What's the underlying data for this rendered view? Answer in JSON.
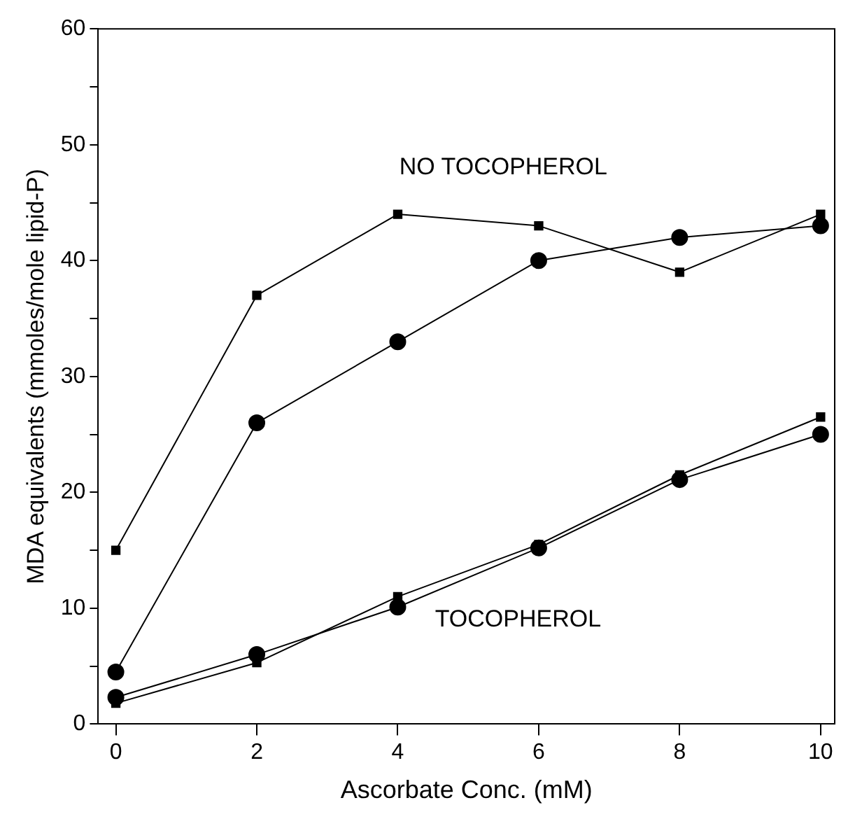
{
  "chart_data": {
    "type": "line",
    "xlabel": "Ascorbate Conc. (mM)",
    "ylabel": "MDA equivalents (mmoles/mole lipid-P)",
    "x": [
      0,
      2,
      4,
      6,
      8,
      10
    ],
    "xlim": [
      -0.25,
      10.2
    ],
    "xticks": [
      0,
      2,
      4,
      6,
      8,
      10
    ],
    "ylim": [
      0,
      60
    ],
    "yticks": [
      0,
      {
        "value": 5,
        "label": null
      },
      10,
      {
        "value": 15,
        "label": null
      },
      20,
      {
        "value": 25,
        "label": null
      },
      30,
      {
        "value": 35,
        "label": null
      },
      40,
      {
        "value": 45,
        "label": null
      },
      50,
      {
        "value": 55,
        "label": null
      },
      60
    ],
    "grid": false,
    "legend": false,
    "line_style": "solid",
    "series": [
      {
        "color": "#000000",
        "marker": "square",
        "values": [
          15,
          37,
          44,
          43,
          39,
          44
        ]
      },
      {
        "color": "#000000",
        "marker": "circle",
        "values": [
          4.5,
          26,
          33,
          40,
          42,
          43
        ]
      },
      {
        "color": "#000000",
        "marker": "square",
        "values": [
          1.8,
          5.3,
          11,
          15.5,
          21.5,
          26.5
        ]
      },
      {
        "color": "#000000",
        "marker": "circle",
        "values": [
          2.3,
          6,
          10.1,
          15.2,
          21.1,
          25
        ]
      }
    ],
    "annotations": [
      "NO TOCOPHEROL",
      "TOCOPHEROL"
    ]
  }
}
